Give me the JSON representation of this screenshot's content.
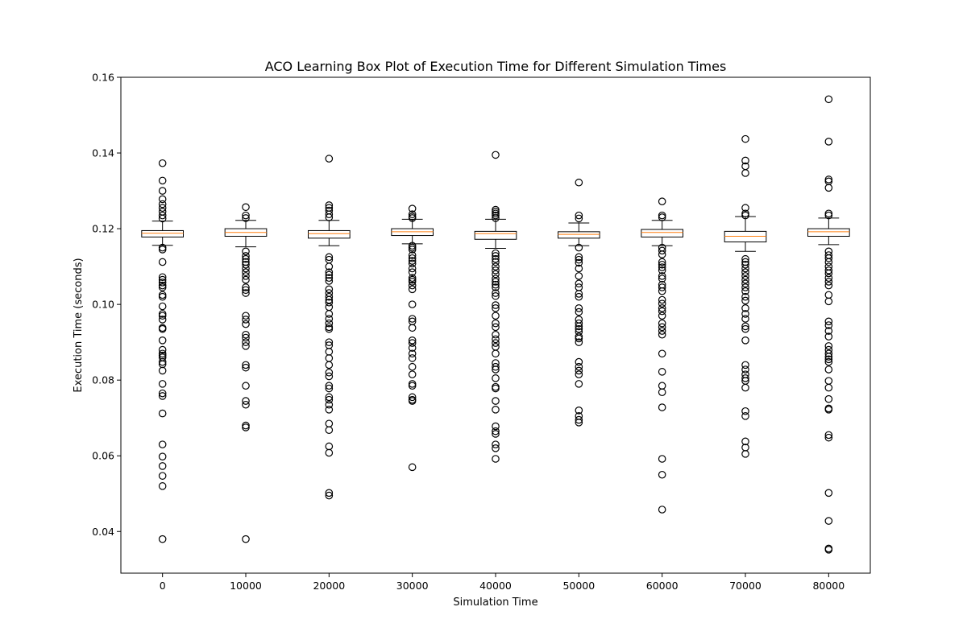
{
  "chart_data": {
    "type": "box",
    "title": "ACO Learning Box Plot of Execution Time for Different Simulation Times",
    "xlabel": "Simulation Time",
    "ylabel": "Execution Time (seconds)",
    "ylim": [
      0.029,
      0.16
    ],
    "yticks": [
      0.04,
      0.06,
      0.08,
      0.1,
      0.12,
      0.14,
      0.16
    ],
    "ytick_labels": [
      "0.04",
      "0.06",
      "0.08",
      "0.10",
      "0.12",
      "0.14",
      "0.16"
    ],
    "grid": false,
    "colors": {
      "box": "#000000",
      "median": "#ff7f0e",
      "flier": "#000000"
    },
    "categories": [
      "0",
      "10000",
      "20000",
      "30000",
      "40000",
      "50000",
      "60000",
      "70000",
      "80000"
    ],
    "boxes": [
      {
        "label": "0",
        "whislo": 0.1156,
        "q1": 0.1178,
        "med": 0.1188,
        "q3": 0.1195,
        "whishi": 0.122,
        "fliers": [
          0.1373,
          0.1327,
          0.13,
          0.1278,
          0.1265,
          0.1255,
          0.1245,
          0.1235,
          0.1227,
          0.115,
          0.1145,
          0.1112,
          0.1072,
          0.1065,
          0.1058,
          0.105,
          0.1045,
          0.1025,
          0.102,
          0.0995,
          0.0975,
          0.097,
          0.096,
          0.0938,
          0.0935,
          0.0905,
          0.088,
          0.087,
          0.0865,
          0.086,
          0.0848,
          0.0842,
          0.0825,
          0.079,
          0.0765,
          0.0758,
          0.0712,
          0.063,
          0.0598,
          0.0573,
          0.0547,
          0.052,
          0.038
        ]
      },
      {
        "label": "10000",
        "whislo": 0.1152,
        "q1": 0.118,
        "med": 0.119,
        "q3": 0.12,
        "whishi": 0.1222,
        "fliers": [
          0.1257,
          0.1235,
          0.1228,
          0.114,
          0.1128,
          0.112,
          0.1112,
          0.1105,
          0.1095,
          0.1085,
          0.1075,
          0.1065,
          0.1045,
          0.1038,
          0.103,
          0.097,
          0.096,
          0.0948,
          0.092,
          0.0912,
          0.09,
          0.089,
          0.084,
          0.0833,
          0.0785,
          0.0745,
          0.0735,
          0.068,
          0.0675,
          0.038
        ]
      },
      {
        "label": "20000",
        "whislo": 0.1155,
        "q1": 0.1175,
        "med": 0.1187,
        "q3": 0.1195,
        "whishi": 0.1222,
        "fliers": [
          0.1385,
          0.1262,
          0.1255,
          0.1248,
          0.1238,
          0.123,
          0.1125,
          0.1118,
          0.11,
          0.1085,
          0.1078,
          0.107,
          0.1062,
          0.104,
          0.103,
          0.102,
          0.1012,
          0.1005,
          0.0993,
          0.0975,
          0.0962,
          0.095,
          0.094,
          0.0935,
          0.09,
          0.0892,
          0.0875,
          0.0858,
          0.084,
          0.082,
          0.081,
          0.0785,
          0.0778,
          0.0755,
          0.0748,
          0.0735,
          0.0722,
          0.0685,
          0.0668,
          0.0625,
          0.0608,
          0.0502,
          0.0495
        ]
      },
      {
        "label": "30000",
        "whislo": 0.116,
        "q1": 0.1182,
        "med": 0.1192,
        "q3": 0.12,
        "whishi": 0.1225,
        "fliers": [
          0.1253,
          0.1238,
          0.1232,
          0.1228,
          0.1155,
          0.115,
          0.1145,
          0.113,
          0.1122,
          0.1115,
          0.1108,
          0.1095,
          0.1085,
          0.107,
          0.1065,
          0.106,
          0.105,
          0.104,
          0.1,
          0.0962,
          0.0955,
          0.0938,
          0.0905,
          0.0898,
          0.0885,
          0.087,
          0.0858,
          0.0835,
          0.0815,
          0.079,
          0.0785,
          0.0755,
          0.0748,
          0.0745,
          0.057
        ]
      },
      {
        "label": "40000",
        "whislo": 0.1148,
        "q1": 0.1172,
        "med": 0.1187,
        "q3": 0.1193,
        "whishi": 0.1225,
        "fliers": [
          0.1395,
          0.125,
          0.1245,
          0.124,
          0.1235,
          0.1228,
          0.1135,
          0.1128,
          0.112,
          0.1112,
          0.11,
          0.109,
          0.108,
          0.1068,
          0.106,
          0.1052,
          0.1045,
          0.103,
          0.1022,
          0.0998,
          0.099,
          0.097,
          0.095,
          0.094,
          0.092,
          0.0908,
          0.0898,
          0.0888,
          0.087,
          0.0845,
          0.0835,
          0.0828,
          0.0805,
          0.0782,
          0.0778,
          0.0745,
          0.0722,
          0.0678,
          0.0665,
          0.0658,
          0.063,
          0.062,
          0.0592
        ]
      },
      {
        "label": "50000",
        "whislo": 0.1155,
        "q1": 0.1175,
        "med": 0.1185,
        "q3": 0.1192,
        "whishi": 0.1215,
        "fliers": [
          0.1322,
          0.1235,
          0.1227,
          0.115,
          0.1125,
          0.1118,
          0.111,
          0.1095,
          0.1075,
          0.1055,
          0.1045,
          0.1028,
          0.102,
          0.099,
          0.098,
          0.096,
          0.095,
          0.0942,
          0.0935,
          0.0928,
          0.0915,
          0.091,
          0.09,
          0.0848,
          0.0835,
          0.0825,
          0.0815,
          0.079,
          0.072,
          0.0705,
          0.0695,
          0.0688
        ]
      },
      {
        "label": "60000",
        "whislo": 0.1155,
        "q1": 0.1178,
        "med": 0.119,
        "q3": 0.1198,
        "whishi": 0.1222,
        "fliers": [
          0.1272,
          0.1235,
          0.123,
          0.115,
          0.1142,
          0.1132,
          0.1112,
          0.1105,
          0.1098,
          0.109,
          0.1075,
          0.1068,
          0.1052,
          0.1045,
          0.1035,
          0.1012,
          0.1002,
          0.099,
          0.0982,
          0.097,
          0.095,
          0.094,
          0.093,
          0.092,
          0.087,
          0.0822,
          0.0785,
          0.0768,
          0.0728,
          0.0592,
          0.055,
          0.0458
        ]
      },
      {
        "label": "70000",
        "whislo": 0.114,
        "q1": 0.1165,
        "med": 0.118,
        "q3": 0.1193,
        "whishi": 0.1232,
        "fliers": [
          0.1437,
          0.138,
          0.1365,
          0.1347,
          0.1255,
          0.124,
          0.1235,
          0.112,
          0.1112,
          0.1105,
          0.1095,
          0.1085,
          0.1075,
          0.1065,
          0.1055,
          0.1045,
          0.1035,
          0.102,
          0.101,
          0.099,
          0.0975,
          0.0962,
          0.0942,
          0.0935,
          0.0905,
          0.084,
          0.0828,
          0.0815,
          0.0805,
          0.0798,
          0.078,
          0.0718,
          0.0705,
          0.0638,
          0.0622,
          0.0605
        ]
      },
      {
        "label": "80000",
        "whislo": 0.1158,
        "q1": 0.118,
        "med": 0.1192,
        "q3": 0.12,
        "whishi": 0.1228,
        "fliers": [
          0.1542,
          0.143,
          0.133,
          0.1325,
          0.1308,
          0.124,
          0.1235,
          0.114,
          0.113,
          0.1122,
          0.1112,
          0.11,
          0.109,
          0.1082,
          0.107,
          0.106,
          0.105,
          0.1025,
          0.1008,
          0.0955,
          0.0945,
          0.093,
          0.0915,
          0.089,
          0.088,
          0.087,
          0.0862,
          0.0855,
          0.0848,
          0.0828,
          0.0798,
          0.078,
          0.075,
          0.0725,
          0.0722,
          0.0655,
          0.0648,
          0.0502,
          0.0428,
          0.0355,
          0.0352
        ]
      }
    ]
  }
}
